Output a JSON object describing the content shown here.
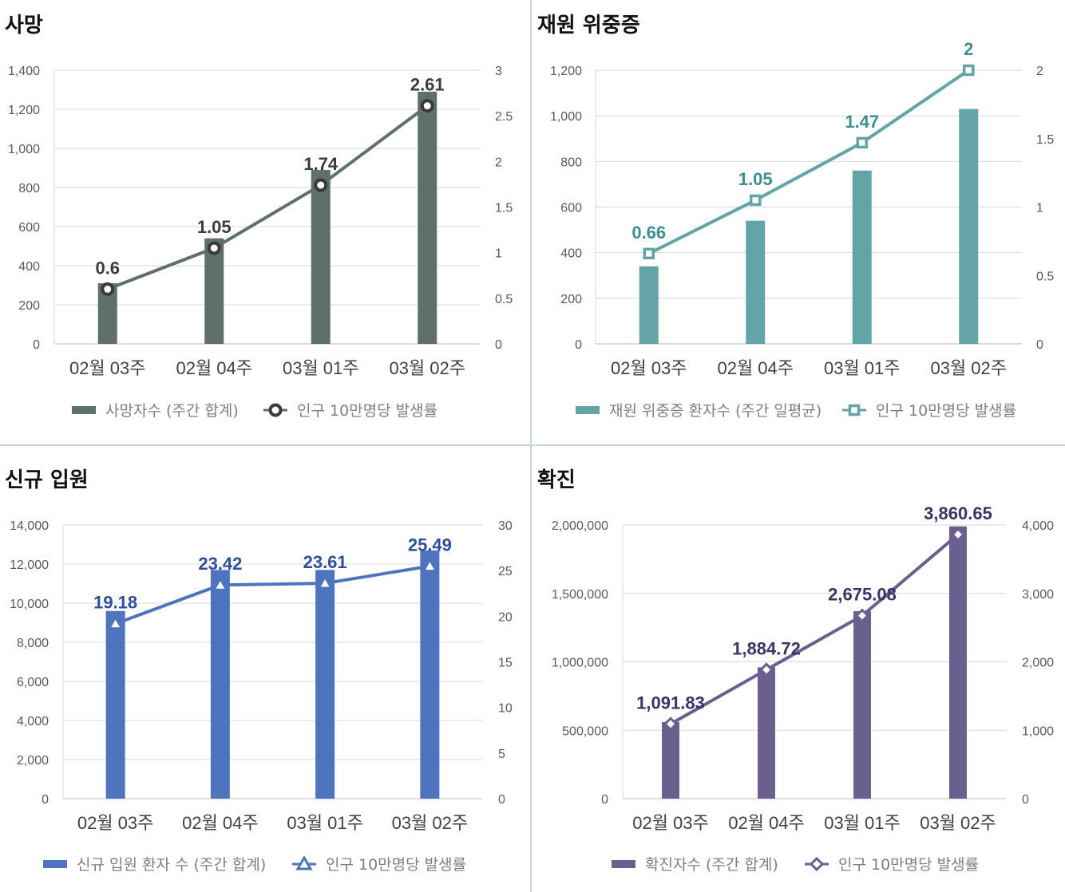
{
  "chart_data": [
    {
      "type": "bar",
      "title": "사망",
      "categories": [
        "02월 03주",
        "02월 04주",
        "03월 01주",
        "03월 02주"
      ],
      "series": [
        {
          "name": "사망자수 (주간 합계)",
          "type": "bar",
          "axis": "left",
          "values": [
            310,
            540,
            890,
            1290
          ]
        },
        {
          "name": "인구 10만명당 발생률",
          "type": "line",
          "axis": "right",
          "marker": "circle",
          "values": [
            0.6,
            1.05,
            1.74,
            2.61
          ],
          "labels": [
            "0.6",
            "1.05",
            "1.74",
            "2.61"
          ]
        }
      ],
      "y_left": {
        "min": 0,
        "max": 1400,
        "step": 200,
        "ticks": [
          "0",
          "200",
          "400",
          "600",
          "800",
          "1,000",
          "1,200",
          "1,400"
        ]
      },
      "y_right": {
        "min": 0,
        "max": 3,
        "step": 0.5,
        "ticks": [
          "0",
          "0.5",
          "1",
          "1.5",
          "2",
          "2.5",
          "3"
        ]
      },
      "colors": {
        "bar": "#5f6f6b",
        "line": "#5f6f6b",
        "label": "#3b3b3b"
      },
      "legend_position": "bottom"
    },
    {
      "type": "bar",
      "title": "재원 위중증",
      "categories": [
        "02월 03주",
        "02월 04주",
        "03월 01주",
        "03월 02주"
      ],
      "series": [
        {
          "name": "재원 위중증 환자수 (주간 일평균)",
          "type": "bar",
          "axis": "left",
          "values": [
            340,
            540,
            760,
            1030
          ]
        },
        {
          "name": "인구 10만명당 발생률",
          "type": "line",
          "axis": "right",
          "marker": "square",
          "values": [
            0.66,
            1.05,
            1.47,
            2.0
          ],
          "labels": [
            "0.66",
            "1.05",
            "1.47",
            "2"
          ]
        }
      ],
      "y_left": {
        "min": 0,
        "max": 1200,
        "step": 200,
        "ticks": [
          "0",
          "200",
          "400",
          "600",
          "800",
          "1,000",
          "1,200"
        ]
      },
      "y_right": {
        "min": 0,
        "max": 2,
        "step": 0.5,
        "ticks": [
          "0",
          "0.5",
          "1",
          "1.5",
          "2"
        ]
      },
      "colors": {
        "bar": "#63a5a6",
        "line": "#63a5a6",
        "label": "#3e8e8f"
      },
      "legend_position": "bottom"
    },
    {
      "type": "bar",
      "title": "신규 입원",
      "categories": [
        "02월 03주",
        "02월 04주",
        "03월 01주",
        "03월 02주"
      ],
      "series": [
        {
          "name": "신규 입원 환자 수 (주간 합계)",
          "type": "bar",
          "axis": "left",
          "values": [
            9600,
            11700,
            11700,
            12700
          ]
        },
        {
          "name": "인구 10만명당 발생률",
          "type": "line",
          "axis": "right",
          "marker": "triangle",
          "values": [
            19.18,
            23.42,
            23.61,
            25.49
          ],
          "labels": [
            "19.18",
            "23.42",
            "23.61",
            "25.49"
          ]
        }
      ],
      "y_left": {
        "min": 0,
        "max": 14000,
        "step": 2000,
        "ticks": [
          "0",
          "2,000",
          "4,000",
          "6,000",
          "8,000",
          "10,000",
          "12,000",
          "14,000"
        ]
      },
      "y_right": {
        "min": 0,
        "max": 30,
        "step": 5,
        "ticks": [
          "0",
          "5",
          "10",
          "15",
          "20",
          "25",
          "30"
        ]
      },
      "colors": {
        "bar": "#4e74bd",
        "line": "#4e74bd",
        "label": "#2f4f9b"
      },
      "legend_position": "bottom"
    },
    {
      "type": "bar",
      "title": "확진",
      "categories": [
        "02월 03주",
        "02월 04주",
        "03월 01주",
        "03월 02주"
      ],
      "series": [
        {
          "name": "확진자수 (주간 합계)",
          "type": "bar",
          "axis": "left",
          "values": [
            560000,
            960000,
            1370000,
            1990000
          ]
        },
        {
          "name": "인구 10만명당 발생률",
          "type": "line",
          "axis": "right",
          "marker": "diamond",
          "values": [
            1091.83,
            1884.72,
            2675.08,
            3860.65
          ],
          "labels": [
            "1,091.83",
            "1,884.72",
            "2,675.08",
            "3,860.65"
          ]
        }
      ],
      "y_left": {
        "min": 0,
        "max": 2000000,
        "step": 500000,
        "ticks": [
          "0",
          "500,000",
          "1,000,000",
          "1,500,000",
          "2,000,000"
        ]
      },
      "y_right": {
        "min": 0,
        "max": 4000,
        "step": 1000,
        "ticks": [
          "0",
          "1,000",
          "2,000",
          "3,000",
          "4,000"
        ]
      },
      "colors": {
        "bar": "#6a5f8e",
        "line": "#6a5f8e",
        "label": "#3d3266"
      },
      "legend_position": "bottom"
    }
  ]
}
